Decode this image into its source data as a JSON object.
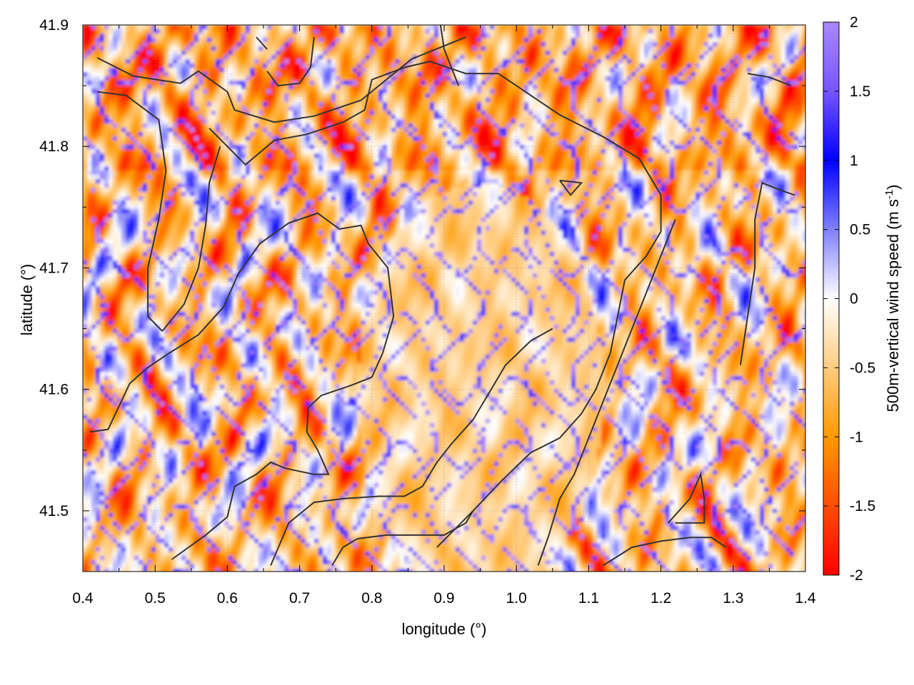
{
  "chart_data": {
    "type": "heatmap",
    "title": "",
    "xlabel": "longitude (°)",
    "ylabel": "latitude (°)",
    "colorbar_label": "500m-vertical wind speed (m s⁻¹)",
    "colorbar_label_parts": {
      "main": "500m-vertical wind speed (m s",
      "sup": "-1",
      "tail": ")"
    },
    "xlim": [
      0.4,
      1.4
    ],
    "ylim": [
      41.45,
      41.9
    ],
    "clim": [
      -2,
      2
    ],
    "x_ticks": [
      "0.4",
      "0.5",
      "0.6",
      "0.7",
      "0.8",
      "0.9",
      "1.0",
      "1.1",
      "1.2",
      "1.3",
      "1.4"
    ],
    "y_ticks": [
      "41.5",
      "41.6",
      "41.7",
      "41.8",
      "41.9"
    ],
    "colorbar_ticks": [
      "2",
      "1.5",
      "1",
      "0.5",
      "0",
      "-0.5",
      "-1",
      "-1.5",
      "-2"
    ],
    "colormap": {
      "stops": [
        {
          "value": -2,
          "color": "#ff0000"
        },
        {
          "value": -1,
          "color": "#ff9900"
        },
        {
          "value": 0,
          "color": "#ffffff"
        },
        {
          "value": 1,
          "color": "#0000ff"
        },
        {
          "value": 1.5,
          "color": "#7755ff"
        },
        {
          "value": 2,
          "color": "#aa88ff"
        }
      ]
    },
    "grid": true,
    "contour_color": "#333333",
    "contours": [
      {
        "points": [
          [
            0.42,
            41.873
          ],
          [
            0.47,
            41.858
          ],
          [
            0.535,
            41.852
          ],
          [
            0.56,
            41.862
          ],
          [
            0.6,
            41.845
          ],
          [
            0.61,
            41.83
          ],
          [
            0.665,
            41.82
          ],
          [
            0.72,
            41.825
          ],
          [
            0.785,
            41.838
          ],
          [
            0.855,
            41.872
          ],
          [
            0.93,
            41.89
          ]
        ]
      },
      {
        "points": [
          [
            0.42,
            41.845
          ],
          [
            0.46,
            41.842
          ],
          [
            0.505,
            41.822
          ],
          [
            0.515,
            41.78
          ],
          [
            0.505,
            41.74
          ],
          [
            0.49,
            41.7
          ],
          [
            0.49,
            41.66
          ],
          [
            0.51,
            41.648
          ]
        ]
      },
      {
        "points": [
          [
            0.41,
            41.565
          ],
          [
            0.435,
            41.567
          ],
          [
            0.465,
            41.605
          ],
          [
            0.49,
            41.618
          ],
          [
            0.52,
            41.63
          ],
          [
            0.56,
            41.645
          ],
          [
            0.595,
            41.668
          ],
          [
            0.615,
            41.695
          ],
          [
            0.645,
            41.72
          ],
          [
            0.685,
            41.737
          ],
          [
            0.725,
            41.745
          ],
          [
            0.755,
            41.732
          ],
          [
            0.785,
            41.735
          ],
          [
            0.795,
            41.72
          ],
          [
            0.822,
            41.7
          ],
          [
            0.83,
            41.66
          ],
          [
            0.815,
            41.63
          ],
          [
            0.8,
            41.61
          ],
          [
            0.77,
            41.603
          ],
          [
            0.73,
            41.595
          ],
          [
            0.712,
            41.585
          ],
          [
            0.71,
            41.565
          ],
          [
            0.725,
            41.55
          ],
          [
            0.74,
            41.53
          ],
          [
            0.72,
            41.53
          ],
          [
            0.68,
            41.535
          ],
          [
            0.66,
            41.54
          ],
          [
            0.64,
            41.53
          ],
          [
            0.61,
            41.52
          ],
          [
            0.6,
            41.495
          ],
          [
            0.57,
            41.48
          ],
          [
            0.523,
            41.46
          ]
        ]
      },
      {
        "points": [
          [
            0.575,
            41.815
          ],
          [
            0.6,
            41.8
          ],
          [
            0.625,
            41.785
          ],
          [
            0.665,
            41.805
          ],
          [
            0.71,
            41.81
          ],
          [
            0.76,
            41.82
          ],
          [
            0.79,
            41.83
          ],
          [
            0.8,
            41.855
          ],
          [
            0.845,
            41.865
          ],
          [
            0.88,
            41.87
          ],
          [
            0.93,
            41.86
          ],
          [
            0.975,
            41.86
          ],
          [
            1.0,
            41.85
          ],
          [
            1.06,
            41.826
          ],
          [
            1.12,
            41.808
          ],
          [
            1.17,
            41.79
          ],
          [
            1.2,
            41.76
          ],
          [
            1.2,
            41.73
          ],
          [
            1.18,
            41.71
          ],
          [
            1.15,
            41.69
          ],
          [
            1.14,
            41.66
          ],
          [
            1.13,
            41.63
          ],
          [
            1.11,
            41.6
          ],
          [
            1.09,
            41.58
          ],
          [
            1.06,
            41.56
          ],
          [
            1.02,
            41.548
          ],
          [
            0.98,
            41.525
          ],
          [
            0.94,
            41.5
          ],
          [
            0.915,
            41.485
          ],
          [
            0.89,
            41.47
          ]
        ]
      },
      {
        "points": [
          [
            0.66,
            41.455
          ],
          [
            0.685,
            41.49
          ],
          [
            0.72,
            41.507
          ],
          [
            0.76,
            41.51
          ],
          [
            0.81,
            41.512
          ],
          [
            0.845,
            41.512
          ],
          [
            0.87,
            41.52
          ],
          [
            0.89,
            41.54
          ],
          [
            0.91,
            41.555
          ],
          [
            0.94,
            41.575
          ],
          [
            0.965,
            41.6
          ],
          [
            0.985,
            41.62
          ],
          [
            1.02,
            41.64
          ],
          [
            1.05,
            41.65
          ]
        ]
      },
      {
        "points": [
          [
            0.745,
            41.455
          ],
          [
            0.76,
            41.47
          ],
          [
            0.78,
            41.477
          ],
          [
            0.82,
            41.48
          ],
          [
            0.86,
            41.48
          ],
          [
            0.9,
            41.48
          ],
          [
            0.93,
            41.49
          ],
          [
            0.94,
            41.5
          ]
        ]
      },
      {
        "points": [
          [
            1.03,
            41.455
          ],
          [
            1.045,
            41.48
          ],
          [
            1.06,
            41.51
          ],
          [
            1.08,
            41.53
          ],
          [
            1.1,
            41.56
          ],
          [
            1.12,
            41.59
          ],
          [
            1.14,
            41.62
          ],
          [
            1.16,
            41.65
          ],
          [
            1.18,
            41.68
          ],
          [
            1.2,
            41.71
          ],
          [
            1.22,
            41.74
          ]
        ]
      },
      {
        "points": [
          [
            1.12,
            41.455
          ],
          [
            1.16,
            41.47
          ],
          [
            1.2,
            41.475
          ],
          [
            1.24,
            41.478
          ],
          [
            1.27,
            41.478
          ],
          [
            1.29,
            41.47
          ]
        ]
      },
      {
        "points": [
          [
            1.31,
            41.62
          ],
          [
            1.32,
            41.66
          ],
          [
            1.33,
            41.7
          ],
          [
            1.33,
            41.74
          ],
          [
            1.34,
            41.77
          ],
          [
            1.37,
            41.763
          ],
          [
            1.385,
            41.76
          ]
        ]
      },
      {
        "points": [
          [
            0.59,
            41.8
          ],
          [
            0.575,
            41.77
          ],
          [
            0.57,
            41.735
          ],
          [
            0.56,
            41.7
          ],
          [
            0.54,
            41.67
          ],
          [
            0.51,
            41.648
          ]
        ]
      },
      {
        "points": [
          [
            1.21,
            41.49
          ],
          [
            1.24,
            41.51
          ],
          [
            1.255,
            41.53
          ],
          [
            1.26,
            41.51
          ],
          [
            1.26,
            41.49
          ],
          [
            1.22,
            41.49
          ]
        ]
      },
      {
        "points": [
          [
            1.06,
            41.772
          ],
          [
            1.075,
            41.76
          ],
          [
            1.09,
            41.77
          ],
          [
            1.06,
            41.772
          ]
        ]
      },
      {
        "points": [
          [
            0.655,
            41.862
          ],
          [
            0.67,
            41.85
          ],
          [
            0.7,
            41.852
          ],
          [
            0.715,
            41.865
          ],
          [
            0.72,
            41.89
          ]
        ]
      },
      {
        "points": [
          [
            1.32,
            41.86
          ],
          [
            1.35,
            41.857
          ],
          [
            1.38,
            41.85
          ]
        ]
      },
      {
        "points": [
          [
            0.64,
            41.89
          ],
          [
            0.655,
            41.88
          ]
        ]
      },
      {
        "points": [
          [
            0.92,
            41.85
          ],
          [
            0.9,
            41.88
          ],
          [
            0.895,
            41.9
          ]
        ]
      }
    ]
  }
}
